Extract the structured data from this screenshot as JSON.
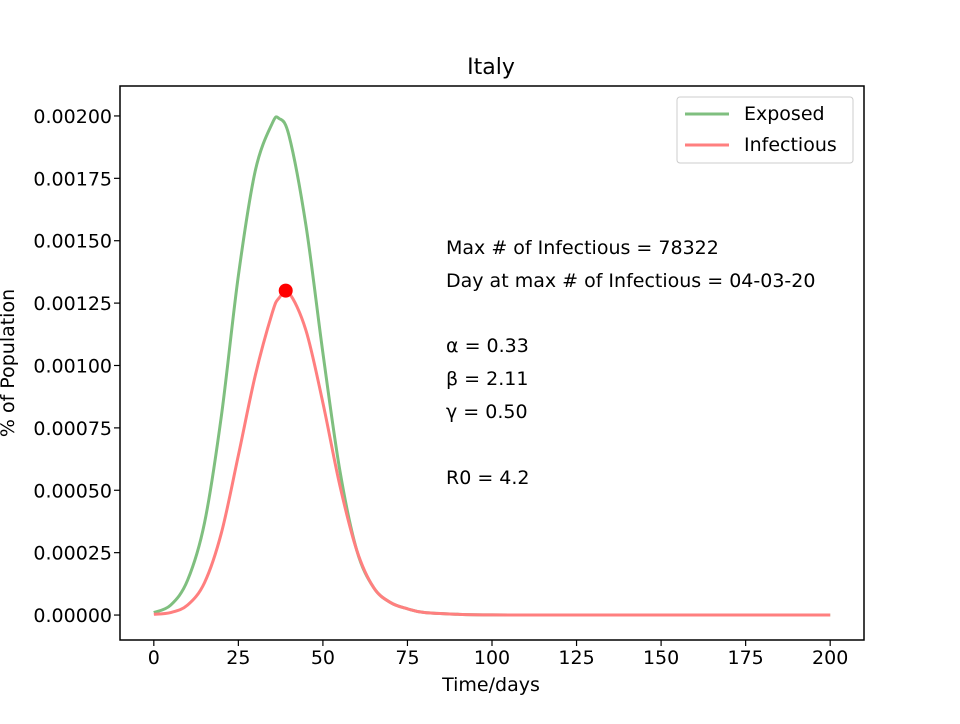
{
  "chart_data": {
    "type": "line",
    "title": "Italy",
    "xlabel": "Time/days",
    "ylabel": "% of Population",
    "xlim": [
      -10,
      210
    ],
    "ylim": [
      -0.0001,
      0.00212
    ],
    "x_ticks": [
      0,
      25,
      50,
      75,
      100,
      125,
      150,
      175,
      200
    ],
    "y_ticks": [
      0.0,
      0.00025,
      0.0005,
      0.00075,
      0.001,
      0.00125,
      0.0015,
      0.00175,
      0.002
    ],
    "y_tick_labels": [
      "0.00000",
      "0.00025",
      "0.00050",
      "0.00075",
      "0.00100",
      "0.00125",
      "0.00150",
      "0.00175",
      "0.00200"
    ],
    "x_tick_labels": [
      "0",
      "25",
      "50",
      "75",
      "100",
      "125",
      "150",
      "175",
      "200"
    ],
    "grid": false,
    "legend_position": "top-right",
    "x": [
      0,
      5,
      10,
      15,
      20,
      25,
      30,
      35,
      37,
      40,
      45,
      50,
      55,
      60,
      65,
      70,
      75,
      80,
      90,
      100,
      125,
      150,
      175,
      200
    ],
    "series": [
      {
        "name": "Exposed",
        "color": "#7fbf7f",
        "values": [
          1e-05,
          4e-05,
          0.00014,
          0.00037,
          0.0008,
          0.00136,
          0.00178,
          0.00197,
          0.00199,
          0.00192,
          0.00156,
          0.00105,
          0.00058,
          0.00026,
          0.00011,
          5e-05,
          2.5e-05,
          1e-05,
          3e-06,
          5e-07,
          0.0,
          0.0,
          0.0,
          0.0
        ]
      },
      {
        "name": "Infectious",
        "color": "#ff7f7f",
        "values": [
          3e-06,
          1e-05,
          4e-05,
          0.00013,
          0.00033,
          0.00064,
          0.00096,
          0.00121,
          0.00127,
          0.00129,
          0.00114,
          0.00085,
          0.00052,
          0.00026,
          0.00011,
          5e-05,
          2.5e-05,
          1e-05,
          3e-06,
          5e-07,
          0.0,
          0.0,
          0.0,
          0.0
        ]
      }
    ],
    "peak_marker": {
      "x": 39,
      "y": 0.0013,
      "color": "#ff0000"
    },
    "annotations": {
      "max_infectious": "Max # of Infectious = 78322",
      "day_at_max": "Day at max # of Infectious = 04-03-20",
      "alpha": "α = 0.33",
      "beta": "β = 2.11",
      "gamma": "γ = 0.50",
      "r0": "R0 = 4.2"
    }
  }
}
